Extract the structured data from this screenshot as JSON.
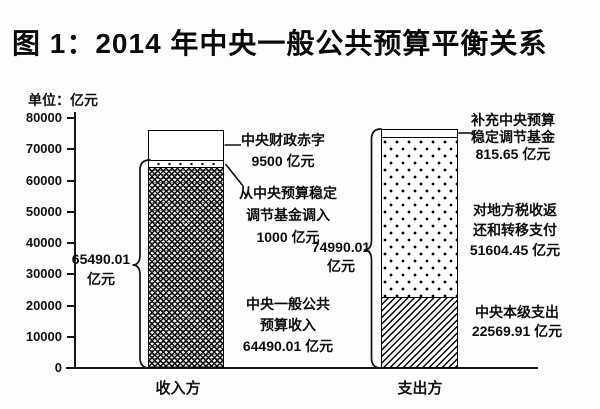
{
  "page": {
    "title": "图 1：2014 年中央一般公共预算平衡关系",
    "unit_label": "单位：亿元"
  },
  "chart_data": {
    "type": "bar",
    "stacked": true,
    "title": "图 1：2014 年中央一般公共预算平衡关系",
    "unit": "亿元",
    "ylabel": "单位：亿元",
    "ylim": [
      0,
      80000
    ],
    "yticks": [
      0,
      10000,
      20000,
      30000,
      40000,
      50000,
      60000,
      70000,
      80000
    ],
    "grid": false,
    "legend": "none",
    "categories": [
      "收入方",
      "支出方"
    ],
    "bars": [
      {
        "category": "收入方",
        "brace_total": 65490.01,
        "segments": [
          {
            "name": "中央一般公共预算收入",
            "value": 64490.01,
            "pattern": "dense"
          },
          {
            "name": "从中央预算稳定调节基金调入",
            "value": 1000,
            "pattern": "dotrow"
          },
          {
            "name": "中央财政赤字",
            "value": 9500,
            "pattern": "plain"
          }
        ]
      },
      {
        "category": "支出方",
        "brace_total": 74990.01,
        "segments": [
          {
            "name": "中央本级支出",
            "value": 22569.91,
            "pattern": "diag"
          },
          {
            "name": "对地方税收返还和转移支付",
            "value": 51604.45,
            "pattern": "polka"
          },
          {
            "name": "补充中央预算稳定调节基金",
            "value": 815.65,
            "pattern": "plain"
          }
        ]
      }
    ]
  },
  "annotations": {
    "deficit": "中央财政赤字\n9500 亿元",
    "transfer_in": "从中央预算稳定\n调节基金调入\n1000 亿元",
    "right_total": "74990.01\n亿元",
    "revenue": "中央一般公共\n预算收入\n64490.01 亿元",
    "replenish": "补充中央预算\n稳定调节基金\n815.65 亿元",
    "local_transfer": "对地方税收返\n还和转移支付\n51604.45 亿元",
    "central_spending": "中央本级支出\n22569.91 亿元",
    "left_total": "65490.01\n亿元"
  }
}
